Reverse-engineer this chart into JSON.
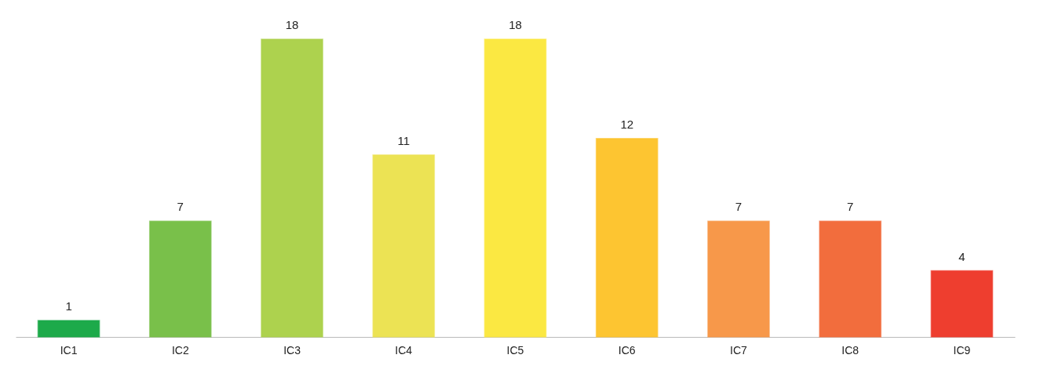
{
  "chart_data": {
    "type": "bar",
    "categories": [
      "IC1",
      "IC2",
      "IC3",
      "IC4",
      "IC5",
      "IC6",
      "IC7",
      "IC8",
      "IC9"
    ],
    "values": [
      1,
      7,
      18,
      11,
      18,
      12,
      7,
      7,
      4
    ],
    "colors": [
      "#1daa4a",
      "#79c04a",
      "#add24e",
      "#ece354",
      "#fbe842",
      "#fdc531",
      "#f7984a",
      "#f26d3d",
      "#ee3e2f"
    ],
    "data_labels": true
  }
}
